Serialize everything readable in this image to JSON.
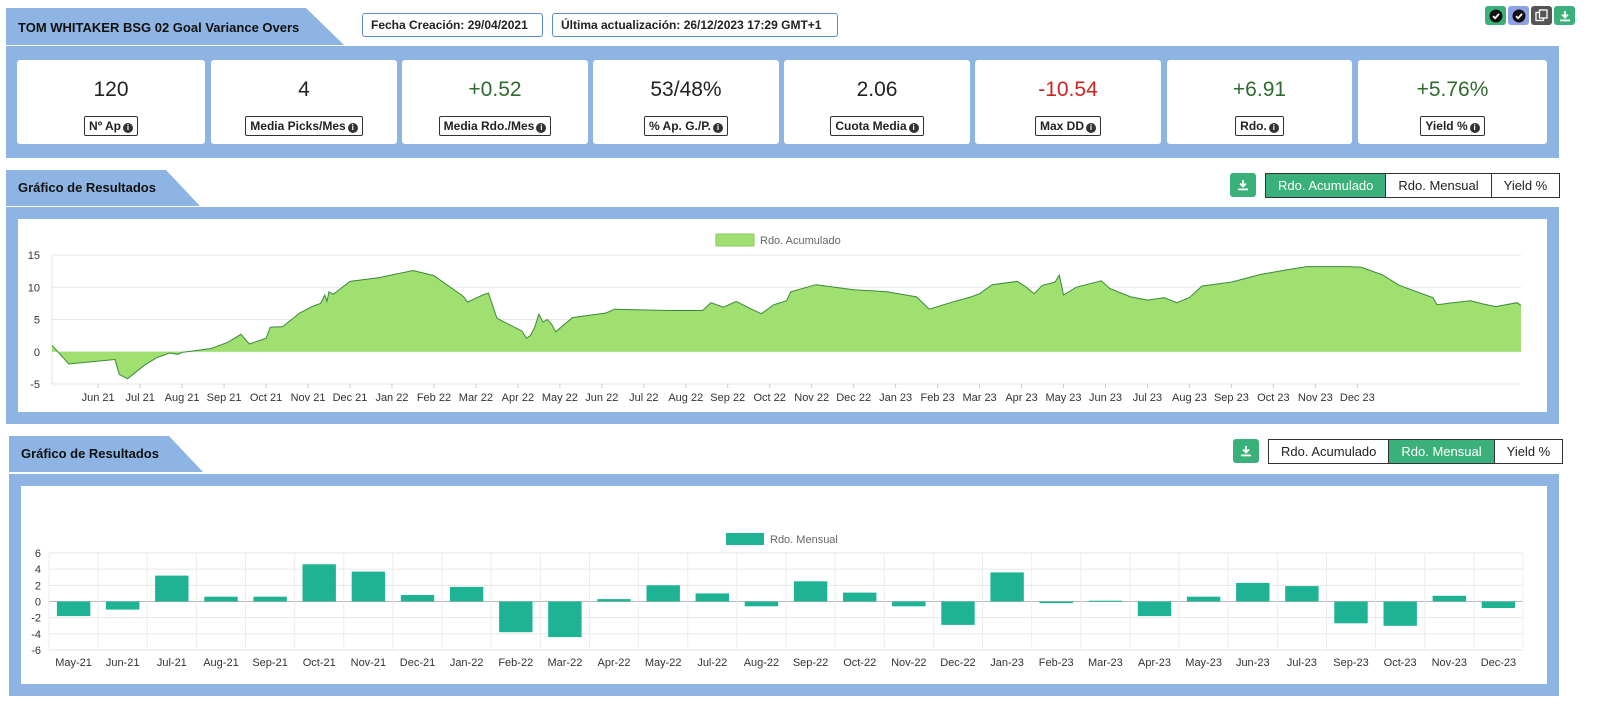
{
  "header": {
    "title": "TOM WHITAKER BSG 02 Goal Variance Overs",
    "created": "Fecha Creación: 29/04/2021",
    "updated": "Última actualización: 26/12/2023 17:29 GMT+1"
  },
  "stats": [
    {
      "value": "120",
      "label": "Nº Ap",
      "tone": "neutral"
    },
    {
      "value": "4",
      "label": "Media Picks/Mes",
      "tone": "neutral"
    },
    {
      "value": "+0.52",
      "label": "Media Rdo./Mes",
      "tone": "pos"
    },
    {
      "value": "53/48%",
      "label": "% Ap. G./P.",
      "tone": "neutral"
    },
    {
      "value": "2.06",
      "label": "Cuota Media",
      "tone": "neutral"
    },
    {
      "value": "-10.54",
      "label": "Max DD",
      "tone": "neg"
    },
    {
      "value": "+6.91",
      "label": "Rdo.",
      "tone": "pos"
    },
    {
      "value": "+5.76%",
      "label": "Yield %",
      "tone": "pos"
    }
  ],
  "section1": {
    "title": "Gráfico de Resultados",
    "tabs": [
      "Rdo. Acumulado",
      "Rdo. Mensual",
      "Yield %"
    ],
    "active": 0
  },
  "section2": {
    "title": "Gráfico de Resultados",
    "tabs": [
      "Rdo. Acumulado",
      "Rdo. Mensual",
      "Yield %"
    ],
    "active": 1
  },
  "colors": {
    "band": "#8db4e3",
    "area_fill": "#9fe071",
    "area_line": "#3a8a3a",
    "bar": "#1db394",
    "button": "#3ab07a"
  },
  "chart_data": [
    {
      "type": "area",
      "series_name": "Rdo. Acumulado",
      "legend_position": "top",
      "ylim": [
        -5,
        15
      ],
      "yticks": [
        -5,
        0,
        5,
        10,
        15
      ],
      "xtick_labels": [
        "Jun 21",
        "Jul 21",
        "Aug 21",
        "Sep 21",
        "Oct 21",
        "Nov 21",
        "Dec 21",
        "Jan 22",
        "Feb 22",
        "Mar 22",
        "Apr 22",
        "May 22",
        "Jun 22",
        "Jul 22",
        "Aug 22",
        "Sep 22",
        "Oct 22",
        "Nov 22",
        "Dec 22",
        "Jan 23",
        "Feb 23",
        "Mar 23",
        "Apr 23",
        "May 23",
        "Jun 23",
        "Jul 23",
        "Aug 23",
        "Sep 23",
        "Oct 23",
        "Nov 23",
        "Dec 23"
      ],
      "points": [
        [
          -0.9,
          1.0
        ],
        [
          -0.5,
          -1.9
        ],
        [
          0.6,
          -1.2
        ],
        [
          0.7,
          -3.5
        ],
        [
          0.9,
          -4.2
        ],
        [
          1.3,
          -2.1
        ],
        [
          1.6,
          -0.9
        ],
        [
          1.9,
          -0.2
        ],
        [
          2.1,
          -0.4
        ],
        [
          2.2,
          -0.1
        ],
        [
          2.9,
          0.5
        ],
        [
          3.3,
          1.5
        ],
        [
          3.6,
          2.7
        ],
        [
          3.8,
          1.2
        ],
        [
          4.2,
          2.1
        ],
        [
          4.3,
          3.8
        ],
        [
          4.6,
          3.9
        ],
        [
          5.0,
          6.0
        ],
        [
          5.3,
          7.0
        ],
        [
          5.5,
          7.5
        ],
        [
          5.6,
          8.8
        ],
        [
          5.65,
          7.8
        ],
        [
          5.7,
          9.3
        ],
        [
          5.8,
          8.9
        ],
        [
          5.9,
          9.4
        ],
        [
          6.2,
          10.9
        ],
        [
          6.9,
          11.5
        ],
        [
          7.7,
          12.6
        ],
        [
          8.2,
          11.8
        ],
        [
          8.9,
          8.6
        ],
        [
          9.0,
          7.7
        ],
        [
          9.4,
          8.9
        ],
        [
          9.5,
          9.1
        ],
        [
          9.7,
          5.2
        ],
        [
          10.3,
          3.2
        ],
        [
          10.4,
          2.1
        ],
        [
          10.5,
          2.5
        ],
        [
          10.6,
          3.8
        ],
        [
          10.7,
          5.8
        ],
        [
          10.8,
          4.6
        ],
        [
          10.9,
          5.0
        ],
        [
          11.0,
          4.3
        ],
        [
          11.1,
          3.1
        ],
        [
          11.5,
          5.3
        ],
        [
          12.3,
          6.0
        ],
        [
          12.5,
          6.6
        ],
        [
          13.8,
          6.4
        ],
        [
          14.6,
          6.4
        ],
        [
          14.8,
          7.6
        ],
        [
          15.1,
          6.9
        ],
        [
          15.4,
          7.8
        ],
        [
          15.8,
          6.5
        ],
        [
          16.0,
          5.9
        ],
        [
          16.3,
          7.3
        ],
        [
          16.6,
          7.9
        ],
        [
          16.7,
          9.3
        ],
        [
          17.3,
          10.4
        ],
        [
          18.2,
          9.6
        ],
        [
          19.0,
          9.3
        ],
        [
          19.7,
          8.5
        ],
        [
          20.0,
          6.6
        ],
        [
          20.5,
          7.6
        ],
        [
          21.0,
          8.5
        ],
        [
          21.2,
          9.0
        ],
        [
          21.5,
          10.4
        ],
        [
          22.1,
          10.9
        ],
        [
          22.3,
          10.1
        ],
        [
          22.5,
          9.0
        ],
        [
          22.7,
          10.3
        ],
        [
          23.0,
          10.8
        ],
        [
          23.1,
          11.9
        ],
        [
          23.2,
          8.8
        ],
        [
          23.5,
          10.0
        ],
        [
          24.1,
          11.0
        ],
        [
          24.3,
          9.8
        ],
        [
          24.8,
          8.5
        ],
        [
          25.2,
          8.0
        ],
        [
          25.6,
          8.4
        ],
        [
          25.9,
          7.6
        ],
        [
          26.2,
          8.4
        ],
        [
          26.5,
          10.2
        ],
        [
          27.2,
          10.8
        ],
        [
          27.9,
          12.0
        ],
        [
          28.6,
          12.8
        ],
        [
          29.0,
          13.2
        ],
        [
          30.0,
          13.2
        ],
        [
          30.3,
          13.1
        ],
        [
          30.8,
          11.9
        ],
        [
          31.2,
          10.3
        ],
        [
          31.7,
          9.1
        ],
        [
          32.0,
          8.4
        ],
        [
          32.1,
          7.3
        ],
        [
          32.6,
          7.7
        ],
        [
          32.9,
          7.9
        ],
        [
          33.2,
          7.4
        ],
        [
          33.5,
          7.0
        ],
        [
          34.0,
          7.6
        ],
        [
          34.1,
          7.2
        ]
      ]
    },
    {
      "type": "bar",
      "series_name": "Rdo. Mensual",
      "legend_position": "top",
      "ylim": [
        -6,
        6
      ],
      "yticks": [
        -6,
        -4,
        -2,
        0,
        2,
        4,
        6
      ],
      "categories": [
        "May-21",
        "Jun-21",
        "Jul-21",
        "Aug-21",
        "Sep-21",
        "Oct-21",
        "Nov-21",
        "Dec-21",
        "Jan-22",
        "Feb-22",
        "Mar-22",
        "Apr-22",
        "May-22",
        "Jul-22",
        "Aug-22",
        "Sep-22",
        "Oct-22",
        "Nov-22",
        "Dec-22",
        "Jan-23",
        "Feb-23",
        "Mar-23",
        "Apr-23",
        "May-23",
        "Jun-23",
        "Jul-23",
        "Sep-23",
        "Oct-23",
        "Nov-23",
        "Dec-23"
      ],
      "values": [
        -1.8,
        -1.0,
        3.2,
        0.6,
        0.6,
        4.6,
        3.7,
        0.8,
        1.8,
        -3.8,
        -4.4,
        0.3,
        2.0,
        1.0,
        -0.6,
        2.5,
        1.1,
        -0.6,
        -2.9,
        3.6,
        -0.2,
        0.1,
        -1.8,
        0.6,
        2.3,
        1.9,
        -2.7,
        -3.0,
        0.7,
        -0.8
      ]
    }
  ]
}
